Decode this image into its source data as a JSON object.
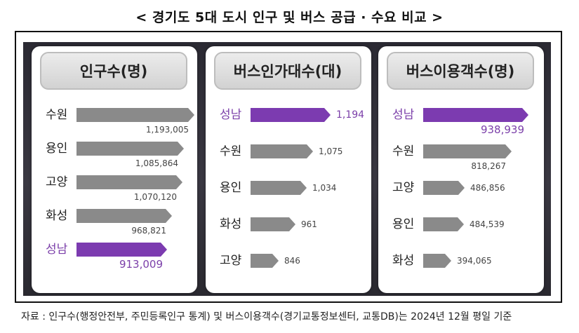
{
  "title": "< 경기도 5대 도시 인구 및 버스 공급 · 수요 비교 >",
  "footnote": "자료 : 인구수(행정안전부, 주민등록인구 통계) 및 버스이용객수(경기교통정보센터, 교통DB)는 2024년 12월 평일 기준",
  "highlight_color": "#7c3bb0",
  "bar_color": "#8a8a8a",
  "chart_data": [
    {
      "type": "bar",
      "title": "인구수(명)",
      "categories": [
        "수원",
        "용인",
        "고양",
        "화성",
        "성남"
      ],
      "values": [
        1193005,
        1085864,
        1070120,
        968821,
        913009
      ],
      "value_labels": [
        "1,193,005",
        "1,085,864",
        "1,070,120",
        "968,821",
        "913,009"
      ],
      "highlight": "성남",
      "orientation": "horizontal"
    },
    {
      "type": "bar",
      "title": "버스인가대수(대)",
      "categories": [
        "성남",
        "수원",
        "용인",
        "화성",
        "고양"
      ],
      "values": [
        1194,
        1075,
        1034,
        961,
        846
      ],
      "value_labels": [
        "1,194",
        "1,075",
        "1,034",
        "961",
        "846"
      ],
      "highlight": "성남",
      "orientation": "horizontal"
    },
    {
      "type": "bar",
      "title": "버스이용객수(명)",
      "categories": [
        "성남",
        "수원",
        "고양",
        "용인",
        "화성"
      ],
      "values": [
        938939,
        818267,
        486856,
        484539,
        394065
      ],
      "value_labels": [
        "938,939",
        "818,267",
        "486,856",
        "484,539",
        "394,065"
      ],
      "highlight": "성남",
      "orientation": "horizontal"
    }
  ]
}
